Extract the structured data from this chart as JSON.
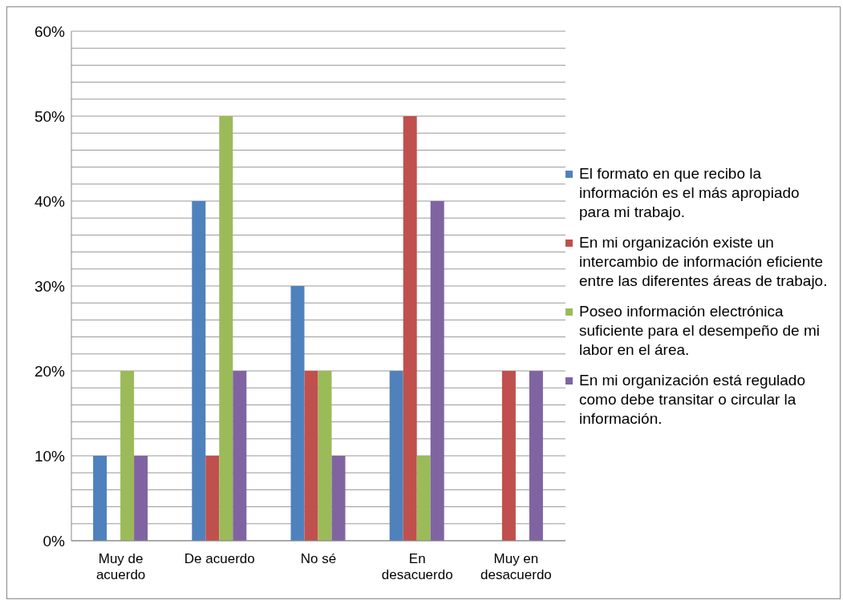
{
  "chart_data": {
    "type": "bar",
    "categories": [
      "Muy de acuerdo",
      "De acuerdo",
      "No sé",
      "En desacuerdo",
      "Muy en desacuerdo"
    ],
    "series": [
      {
        "name": "El formato en que recibo la información es el más apropiado para mi trabajo.",
        "color": "#4f81bd",
        "values": [
          10,
          40,
          30,
          20,
          0
        ]
      },
      {
        "name": "En mi organización existe un intercambio de información eficiente entre las diferentes áreas de trabajo.",
        "color": "#c0504d",
        "values": [
          0,
          10,
          20,
          50,
          20
        ]
      },
      {
        "name": "Poseo información electrónica suficiente para el desempeño de mi labor en el área.",
        "color": "#9bbb59",
        "values": [
          20,
          50,
          20,
          10,
          0
        ]
      },
      {
        "name": "En mi organización está regulado como debe transitar o circular la información.",
        "color": "#8064a2",
        "values": [
          10,
          20,
          10,
          40,
          20
        ]
      }
    ],
    "ylim": [
      0,
      60
    ],
    "yticks": [
      {
        "value": 0,
        "label": "0%"
      },
      {
        "value": 2,
        "label": null
      },
      {
        "value": 4,
        "label": null
      },
      {
        "value": 6,
        "label": null
      },
      {
        "value": 8,
        "label": null
      },
      {
        "value": 10,
        "label": "10%"
      },
      {
        "value": 12,
        "label": null
      },
      {
        "value": 14,
        "label": null
      },
      {
        "value": 16,
        "label": null
      },
      {
        "value": 18,
        "label": null
      },
      {
        "value": 20,
        "label": "20%"
      },
      {
        "value": 22,
        "label": null
      },
      {
        "value": 24,
        "label": null
      },
      {
        "value": 26,
        "label": null
      },
      {
        "value": 28,
        "label": null
      },
      {
        "value": 30,
        "label": "30%"
      },
      {
        "value": 32,
        "label": null
      },
      {
        "value": 34,
        "label": null
      },
      {
        "value": 36,
        "label": null
      },
      {
        "value": 38,
        "label": null
      },
      {
        "value": 40,
        "label": "40%"
      },
      {
        "value": 42,
        "label": null
      },
      {
        "value": 44,
        "label": null
      },
      {
        "value": 46,
        "label": null
      },
      {
        "value": 48,
        "label": null
      },
      {
        "value": 50,
        "label": "50%"
      },
      {
        "value": 52,
        "label": null
      },
      {
        "value": 54,
        "label": null
      },
      {
        "value": 56,
        "label": null
      },
      {
        "value": 58,
        "label": null
      },
      {
        "value": 60,
        "label": "60%"
      }
    ],
    "grid": "y",
    "legend": "right"
  }
}
